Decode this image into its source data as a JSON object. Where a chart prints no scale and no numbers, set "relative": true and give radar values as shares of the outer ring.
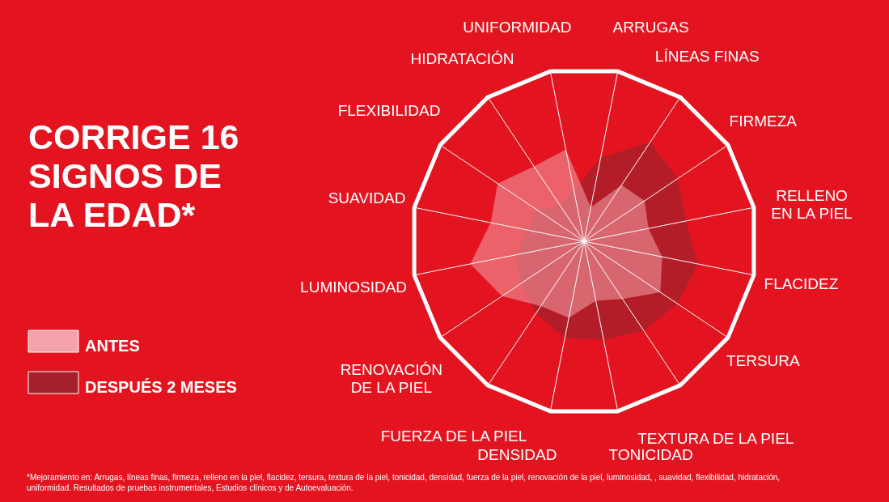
{
  "chart_data": {
    "type": "radar",
    "title": "CORRIGE 16\nSIGNOS DE\nLA EDAD*",
    "relative": true,
    "grid": true,
    "legend": "left",
    "categories": [
      "UNIFORMIDAD",
      "ARRUGAS",
      "LÍNEAS FINAS",
      "FIRMEZA",
      "RELLENO\nEN LA PIEL",
      "FLACIDEZ",
      "TERSURA",
      "TEXTURA DE LA PIEL",
      "TONICIDAD",
      "DENSIDAD",
      "FUERZA DE LA PIEL",
      "RENOVACIÓN\nDE LA PIEL",
      "LUMINOSIDAD",
      "SUAVIDAD",
      "FLEXIBILIDAD",
      "HIDRATACIÓN"
    ],
    "series": [
      {
        "name": "DESPUÉS 2 MESES",
        "color": "#a3202c",
        "values": [
          0.3,
          0.49,
          0.69,
          0.65,
          0.6,
          0.67,
          0.65,
          0.62,
          0.58,
          0.57,
          0.5,
          0.44,
          0.4,
          0.33,
          0.33,
          0.25
        ]
      },
      {
        "name": "ANTES",
        "color": "#f4a3aa",
        "values": [
          0.54,
          0.2,
          0.39,
          0.42,
          0.38,
          0.46,
          0.53,
          0.4,
          0.35,
          0.45,
          0.45,
          0.57,
          0.67,
          0.55,
          0.6,
          0.52
        ]
      }
    ],
    "annotations": [
      "*Mejoramiento en: Arrugas, líneas finas, firmeza, relleno en la piel, flacidez, tersura, textura de la piel, tonicidad, densidad, fuerza de la piel, renovación de la piel, luminosidad, , suavidad, flexibilidad, hidratación,\nuniformidad. Resultados de pruebas instrumentales, Estudios clínicos y de Autoevaluación."
    ]
  }
}
